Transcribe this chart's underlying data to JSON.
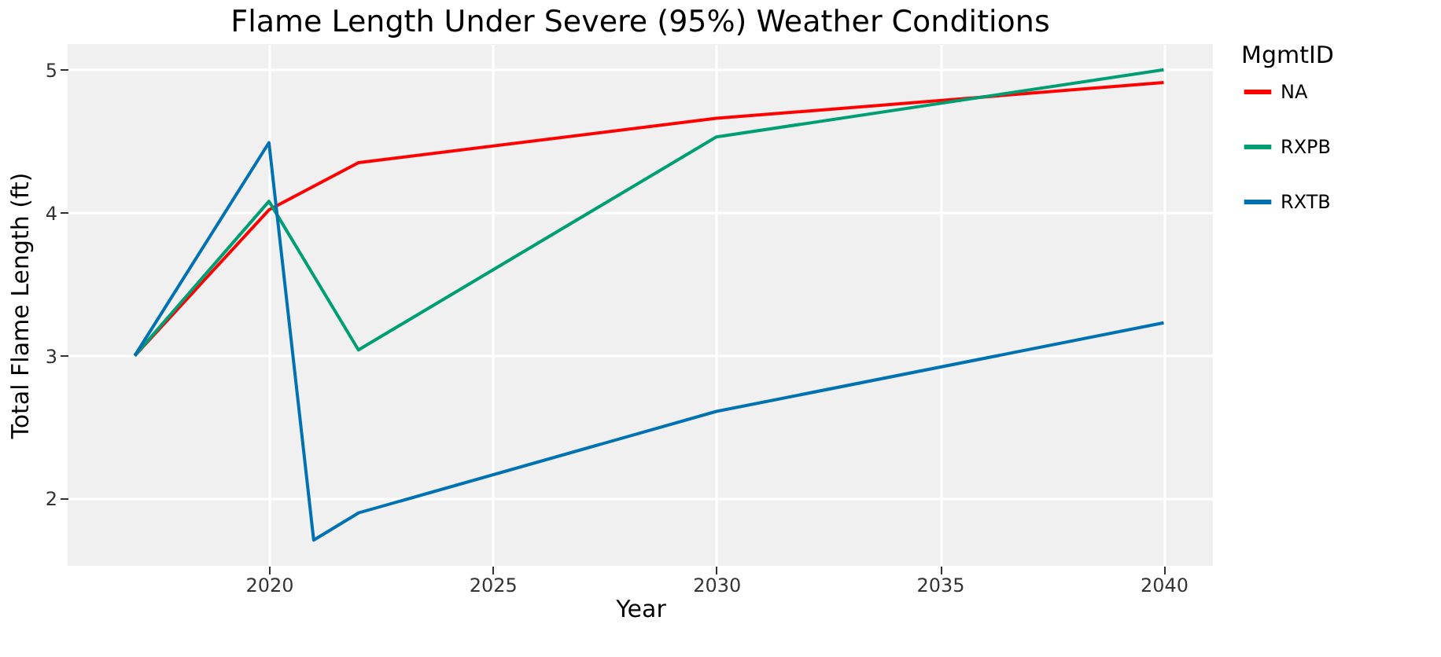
{
  "chart_data": {
    "type": "line",
    "title": "Flame Length Under Severe (95%) Weather Conditions",
    "xlabel": "Year",
    "ylabel": "Total Flame Length (ft)",
    "legend_title": "MgmtID",
    "series": [
      {
        "name": "NA",
        "color": "#ff0000",
        "x": [
          2017,
          2020,
          2022,
          2030,
          2040
        ],
        "values": [
          3.0,
          4.02,
          4.35,
          4.66,
          4.91
        ]
      },
      {
        "name": "RXPB",
        "color": "#009e73",
        "x": [
          2017,
          2020,
          2022,
          2030,
          2040
        ],
        "values": [
          3.0,
          4.08,
          3.04,
          4.53,
          5.0
        ]
      },
      {
        "name": "RXTB",
        "color": "#0072b2",
        "x": [
          2017,
          2020,
          2021,
          2022,
          2030,
          2040
        ],
        "values": [
          3.0,
          4.49,
          1.71,
          1.9,
          2.61,
          3.23
        ]
      }
    ],
    "xlim": [
      2015.5,
      2041.1
    ],
    "xticks": [
      2020,
      2025,
      2030,
      2035,
      2040
    ],
    "ylim": [
      1.53,
      5.18
    ],
    "yticks": [
      2,
      3,
      4,
      5
    ],
    "grid": true,
    "legend": "right",
    "marker": "none",
    "line_style": "solid"
  }
}
